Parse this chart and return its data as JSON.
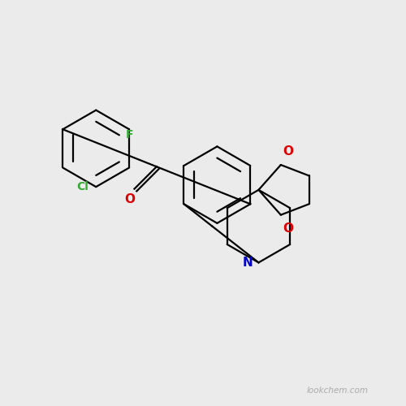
{
  "background_color": "#ebebeb",
  "bond_color": "#000000",
  "watermark": "lookchem.com",
  "watermark_color": "#aaaaaa",
  "atom_colors": {
    "F": "#33aa33",
    "Cl": "#33aa33",
    "O": "#dd0000",
    "N": "#0000cc",
    "C": "#000000"
  },
  "lw": 1.6,
  "inner_ratio": 0.7,
  "ring_r": 0.95
}
